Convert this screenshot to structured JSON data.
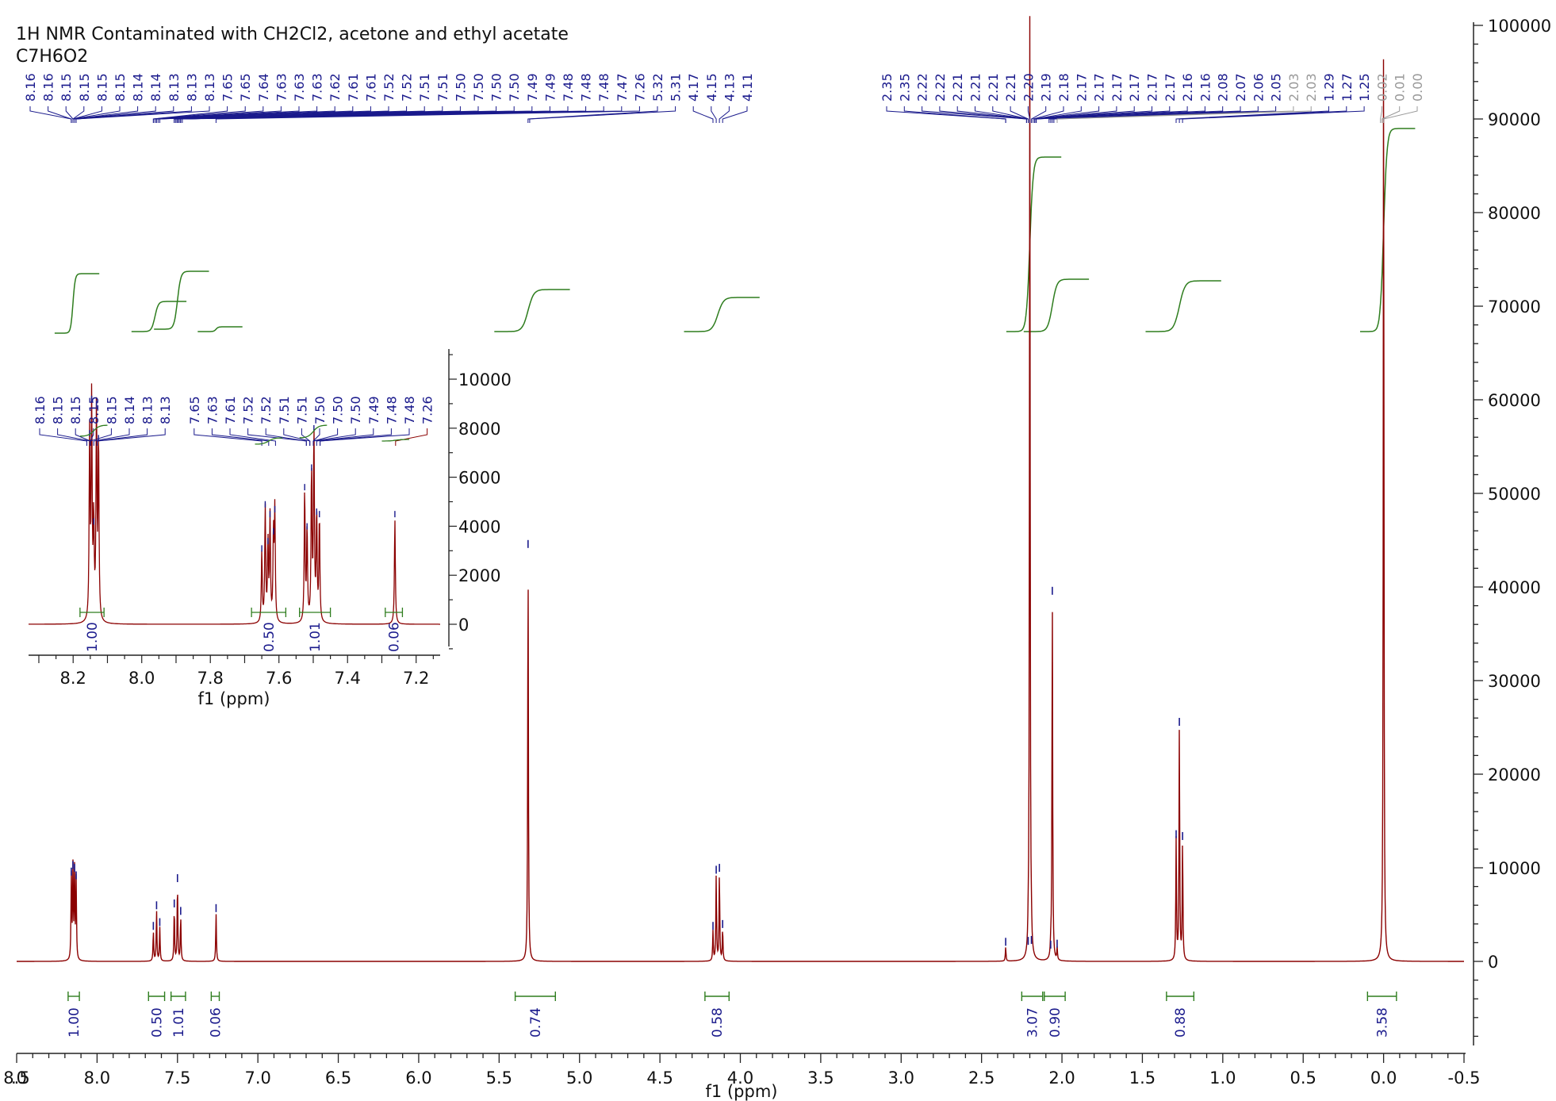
{
  "header": {
    "title": "1H NMR Contaminated with CH2Cl2, acetone and ethyl acetate",
    "formula": "C7H6O2"
  },
  "colors": {
    "spectrum": "#8b0000",
    "peak_marker": "#1a1a8c",
    "integral": "#2e7d1e",
    "label_grey": "#9a9a9a",
    "axis": "#222222"
  },
  "chart_data": [
    {
      "type": "line",
      "title": "1H NMR Contaminated with CH2Cl2, acetone and ethyl acetate",
      "subtitle": "C7H6O2",
      "xlabel": "f1 (ppm)",
      "ylabel": "",
      "xlim": [
        9.0,
        -0.6
      ],
      "ylim": [
        -9000,
        101000
      ],
      "x_reversed": true,
      "x_ticks": [
        ".0",
        "8.5",
        "8.0",
        "7.5",
        "7.0",
        "6.5",
        "6.0",
        "5.5",
        "5.0",
        "4.5",
        "4.0",
        "3.5",
        "3.0",
        "2.5",
        "2.0",
        "1.5",
        "1.0",
        "0.5",
        "0.0",
        "-0.5"
      ],
      "y_ticks": [
        "0",
        "10000",
        "20000",
        "30000",
        "40000",
        "50000",
        "60000",
        "70000",
        "80000",
        "90000",
        "100000"
      ],
      "y_axis_position": "right",
      "peaks": [
        {
          "ppm": 8.16,
          "height": 9000
        },
        {
          "ppm": 8.15,
          "height": 9700
        },
        {
          "ppm": 8.14,
          "height": 9400
        },
        {
          "ppm": 8.13,
          "height": 8600
        },
        {
          "ppm": 7.65,
          "height": 3200
        },
        {
          "ppm": 7.63,
          "height": 5400
        },
        {
          "ppm": 7.61,
          "height": 3600
        },
        {
          "ppm": 7.52,
          "height": 5600
        },
        {
          "ppm": 7.5,
          "height": 8300
        },
        {
          "ppm": 7.48,
          "height": 4800
        },
        {
          "ppm": 7.26,
          "height": 5100
        },
        {
          "ppm": 5.32,
          "height": 44000
        },
        {
          "ppm": 4.17,
          "height": 3200
        },
        {
          "ppm": 4.15,
          "height": 9200
        },
        {
          "ppm": 4.13,
          "height": 9400
        },
        {
          "ppm": 4.11,
          "height": 3400
        },
        {
          "ppm": 2.35,
          "height": 1500
        },
        {
          "ppm": 2.21,
          "height": 1600
        },
        {
          "ppm": 2.2,
          "height": 101000
        },
        {
          "ppm": 2.19,
          "height": 1700
        },
        {
          "ppm": 2.07,
          "height": 1200
        },
        {
          "ppm": 2.06,
          "height": 39000
        },
        {
          "ppm": 2.03,
          "height": 1300
        },
        {
          "ppm": 1.29,
          "height": 13000
        },
        {
          "ppm": 1.27,
          "height": 25000
        },
        {
          "ppm": 1.25,
          "height": 12800
        },
        {
          "ppm": 0.0,
          "height": 101000
        }
      ],
      "peak_labels": {
        "group1": [
          "8.16",
          "8.16",
          "8.15",
          "8.15",
          "8.15",
          "8.15",
          "8.14",
          "8.14",
          "8.13",
          "8.13",
          "8.13",
          "7.65",
          "7.65",
          "7.64",
          "7.63",
          "7.63",
          "7.63",
          "7.62",
          "7.61",
          "7.61",
          "7.52",
          "7.52",
          "7.51",
          "7.51",
          "7.50",
          "7.50",
          "7.50",
          "7.50",
          "7.49",
          "7.49",
          "7.48",
          "7.48",
          "7.48",
          "7.47",
          "7.26",
          "5.32",
          "5.31",
          "4.17",
          "4.15",
          "4.13",
          "4.11"
        ],
        "group2": [
          "2.35",
          "2.35",
          "2.22",
          "2.22",
          "2.21",
          "2.21",
          "2.21",
          "2.21",
          "2.20",
          "2.19",
          "2.18",
          "2.17",
          "2.17",
          "2.17",
          "2.17",
          "2.17",
          "2.17",
          "2.16",
          "2.16",
          "2.08",
          "2.07",
          "2.06",
          "2.05",
          "2.03",
          "2.03",
          "1.29",
          "1.27",
          "1.25",
          "0.02",
          "0.01",
          "0.00"
        ],
        "grey": [
          "2.03",
          "2.03",
          "0.02",
          "0.01",
          "0.00"
        ]
      },
      "integrals": [
        {
          "from": 8.18,
          "to": 8.11,
          "value": "1.00"
        },
        {
          "from": 7.68,
          "to": 7.58,
          "value": "0.50"
        },
        {
          "from": 7.54,
          "to": 7.45,
          "value": "1.01"
        },
        {
          "from": 7.29,
          "to": 7.24,
          "value": "0.06"
        },
        {
          "from": 5.4,
          "to": 5.15,
          "value": "0.74"
        },
        {
          "from": 4.22,
          "to": 4.07,
          "value": "0.58"
        },
        {
          "from": 2.25,
          "to": 2.12,
          "value": "3.07"
        },
        {
          "from": 2.11,
          "to": 1.98,
          "value": "0.90"
        },
        {
          "from": 1.35,
          "to": 1.18,
          "value": "0.88"
        },
        {
          "from": 0.1,
          "to": -0.08,
          "value": "3.58"
        }
      ]
    },
    {
      "type": "line",
      "title": "",
      "xlabel": "f1 (ppm)",
      "xlim": [
        8.33,
        7.13
      ],
      "ylim": [
        -1000,
        11000
      ],
      "x_reversed": true,
      "x_ticks": [
        "8.2",
        "8.0",
        "7.8",
        "7.6",
        "7.4",
        "7.2"
      ],
      "y_ticks": [
        "0",
        "2000",
        "4000",
        "6000",
        "8000",
        "10000"
      ],
      "peak_labels": [
        "8.16",
        "8.15",
        "8.15",
        "8.15",
        "8.15",
        "8.14",
        "8.13",
        "8.13",
        "7.65",
        "7.63",
        "7.61",
        "7.52",
        "7.52",
        "7.51",
        "7.51",
        "7.50",
        "7.50",
        "7.50",
        "7.49",
        "7.48",
        "7.48",
        "7.26"
      ],
      "integrals": [
        {
          "from": 8.18,
          "to": 8.11,
          "value": "1.00"
        },
        {
          "from": 7.68,
          "to": 7.58,
          "value": "0.50"
        },
        {
          "from": 7.54,
          "to": 7.45,
          "value": "1.01"
        },
        {
          "from": 7.29,
          "to": 7.24,
          "value": "0.06"
        }
      ]
    }
  ]
}
